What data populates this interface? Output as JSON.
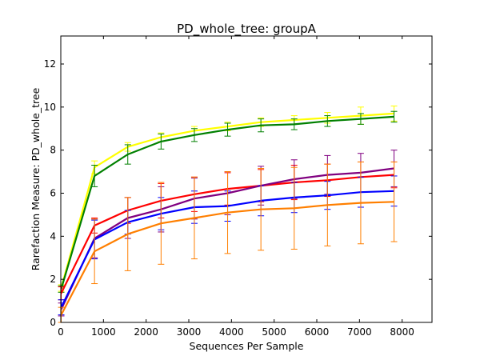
{
  "chart_data": {
    "type": "line",
    "title": "PD_whole_tree: groupA",
    "xlabel": "Sequences Per Sample",
    "ylabel": "Rarefaction Measure: PD_whole_tree",
    "xlim": [
      0,
      8700
    ],
    "ylim": [
      0,
      13.3
    ],
    "x_ticks": [
      0,
      1000,
      2000,
      3000,
      4000,
      5000,
      6000,
      7000,
      8000
    ],
    "y_ticks": [
      0,
      2,
      4,
      6,
      8,
      10,
      12
    ],
    "x_tick_labels": [
      "0",
      "1000",
      "2000",
      "3000",
      "4000",
      "5000",
      "6000",
      "7000",
      "8000"
    ],
    "y_tick_labels": [
      "0",
      "2",
      "4",
      "6",
      "8",
      "10",
      "12"
    ],
    "grid": false,
    "legend": "none",
    "x": [
      10,
      790,
      1570,
      2350,
      3130,
      3910,
      4690,
      5470,
      6250,
      7030,
      7810
    ],
    "series": [
      {
        "color": "#ffff00",
        "values": [
          1.6,
          7.2,
          8.15,
          8.6,
          8.9,
          9.1,
          9.3,
          9.4,
          9.5,
          9.6,
          9.7
        ],
        "errors": [
          0.15,
          0.3,
          0.2,
          0.2,
          0.2,
          0.2,
          0.2,
          0.2,
          0.25,
          0.4,
          0.35
        ]
      },
      {
        "color": "#008000",
        "values": [
          1.55,
          6.8,
          7.8,
          8.4,
          8.7,
          8.95,
          9.15,
          9.2,
          9.35,
          9.45,
          9.55
        ],
        "errors": [
          0.15,
          0.5,
          0.45,
          0.35,
          0.3,
          0.3,
          0.3,
          0.25,
          0.25,
          0.25,
          0.25
        ]
      },
      {
        "color": "#ff0000",
        "values": [
          1.35,
          4.5,
          5.2,
          5.65,
          5.95,
          6.2,
          6.35,
          6.5,
          6.6,
          6.75,
          6.85
        ],
        "errors": [
          0.3,
          0.35,
          0.6,
          0.8,
          0.8,
          0.75,
          0.75,
          0.8,
          0.75,
          0.7,
          0.6
        ]
      },
      {
        "color": "#800080",
        "values": [
          0.6,
          3.9,
          4.85,
          5.25,
          5.75,
          6.0,
          6.35,
          6.65,
          6.85,
          6.95,
          7.15
        ],
        "errors": [
          0.3,
          0.9,
          0.95,
          1.05,
          0.95,
          1.0,
          0.9,
          0.9,
          0.9,
          0.9,
          0.85
        ]
      },
      {
        "color": "#0000ff",
        "values": [
          0.7,
          3.85,
          4.65,
          5.05,
          5.35,
          5.4,
          5.65,
          5.8,
          5.9,
          6.05,
          6.1
        ],
        "errors": [
          0.35,
          0.9,
          0.55,
          0.75,
          0.75,
          0.7,
          0.7,
          0.7,
          0.65,
          0.7,
          0.7
        ]
      },
      {
        "color": "#ff7f00",
        "values": [
          0.35,
          3.3,
          4.1,
          4.6,
          4.85,
          5.1,
          5.25,
          5.3,
          5.45,
          5.55,
          5.6
        ],
        "errors": [
          0.35,
          1.5,
          1.7,
          1.9,
          1.9,
          1.9,
          1.9,
          1.9,
          1.9,
          1.9,
          1.85
        ]
      }
    ]
  }
}
